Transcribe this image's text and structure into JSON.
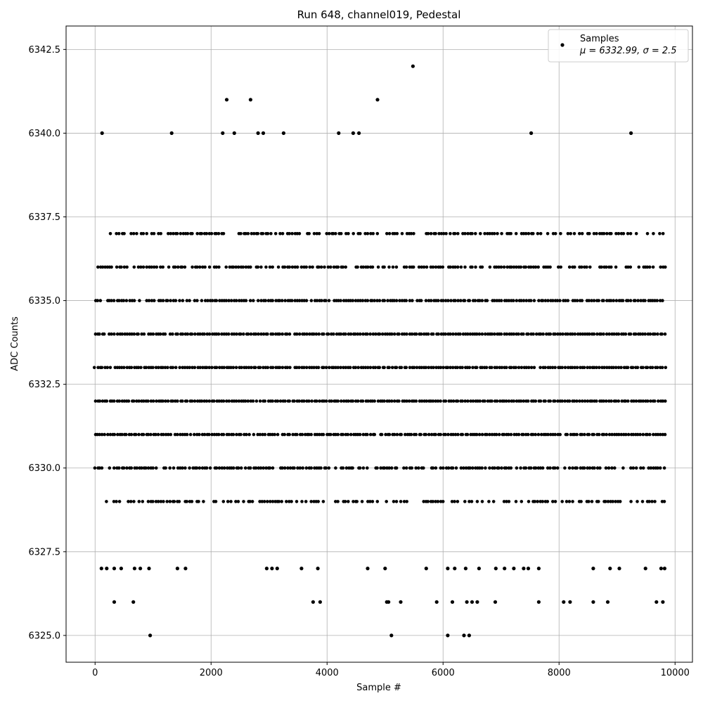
{
  "chart_data": {
    "type": "scatter",
    "title": "Run 648, channel019, Pedestal",
    "xlabel": "Sample #",
    "ylabel": "ADC Counts",
    "xlim": [
      -500,
      10300
    ],
    "ylim": [
      6324.2,
      6343.2
    ],
    "xticks": [
      0,
      2000,
      4000,
      6000,
      8000,
      10000
    ],
    "xtick_labels": [
      "0",
      "2000",
      "4000",
      "6000",
      "8000",
      "10000"
    ],
    "yticks": [
      6325.0,
      6327.5,
      6330.0,
      6332.5,
      6335.0,
      6337.5,
      6340.0,
      6342.5
    ],
    "ytick_labels": [
      "6325.0",
      "6327.5",
      "6330.0",
      "6332.5",
      "6335.0",
      "6337.5",
      "6340.0",
      "6342.5"
    ],
    "grid": true,
    "legend_position": "top-right",
    "series": [
      {
        "name": "Samples",
        "color": "#000000",
        "marker": "circle",
        "sample_count": 9830,
        "dense_levels": [
          {
            "y": 6337,
            "x_range": [
              0,
              9830
            ],
            "density": 0.65
          },
          {
            "y": 6336,
            "x_range": [
              0,
              9830
            ],
            "density": 0.75
          },
          {
            "y": 6335,
            "x_range": [
              0,
              9830
            ],
            "density": 0.9
          },
          {
            "y": 6334,
            "x_range": [
              0,
              9830
            ],
            "density": 0.97
          },
          {
            "y": 6333,
            "x_range": [
              0,
              9830
            ],
            "density": 0.99
          },
          {
            "y": 6332,
            "x_range": [
              0,
              9830
            ],
            "density": 0.99
          },
          {
            "y": 6331,
            "x_range": [
              0,
              9830
            ],
            "density": 0.95
          },
          {
            "y": 6330,
            "x_range": [
              0,
              9830
            ],
            "density": 0.8
          },
          {
            "y": 6329,
            "x_range": [
              200,
              9830
            ],
            "density": 0.6
          }
        ],
        "sparse_points": [
          {
            "x": 950,
            "y": 6325
          },
          {
            "x": 5110,
            "y": 6325
          },
          {
            "x": 6080,
            "y": 6325
          },
          {
            "x": 6360,
            "y": 6325
          },
          {
            "x": 6450,
            "y": 6325
          },
          {
            "x": 330,
            "y": 6326
          },
          {
            "x": 660,
            "y": 6326
          },
          {
            "x": 3760,
            "y": 6326
          },
          {
            "x": 3880,
            "y": 6326
          },
          {
            "x": 5030,
            "y": 6326
          },
          {
            "x": 5060,
            "y": 6326
          },
          {
            "x": 5270,
            "y": 6326
          },
          {
            "x": 5890,
            "y": 6326
          },
          {
            "x": 6160,
            "y": 6326
          },
          {
            "x": 6410,
            "y": 6326
          },
          {
            "x": 6500,
            "y": 6326
          },
          {
            "x": 6590,
            "y": 6326
          },
          {
            "x": 6900,
            "y": 6326
          },
          {
            "x": 7650,
            "y": 6326
          },
          {
            "x": 8080,
            "y": 6326
          },
          {
            "x": 8190,
            "y": 6326
          },
          {
            "x": 8590,
            "y": 6326
          },
          {
            "x": 8840,
            "y": 6326
          },
          {
            "x": 9680,
            "y": 6326
          },
          {
            "x": 9790,
            "y": 6326
          },
          {
            "x": 110,
            "y": 6327
          },
          {
            "x": 200,
            "y": 6327
          },
          {
            "x": 330,
            "y": 6327
          },
          {
            "x": 450,
            "y": 6327
          },
          {
            "x": 680,
            "y": 6327
          },
          {
            "x": 780,
            "y": 6327
          },
          {
            "x": 930,
            "y": 6327
          },
          {
            "x": 1420,
            "y": 6327
          },
          {
            "x": 1560,
            "y": 6327
          },
          {
            "x": 2960,
            "y": 6327
          },
          {
            "x": 3050,
            "y": 6327
          },
          {
            "x": 3140,
            "y": 6327
          },
          {
            "x": 3560,
            "y": 6327
          },
          {
            "x": 3840,
            "y": 6327
          },
          {
            "x": 4700,
            "y": 6327
          },
          {
            "x": 5000,
            "y": 6327
          },
          {
            "x": 5710,
            "y": 6327
          },
          {
            "x": 6080,
            "y": 6327
          },
          {
            "x": 6200,
            "y": 6327
          },
          {
            "x": 6390,
            "y": 6327
          },
          {
            "x": 6620,
            "y": 6327
          },
          {
            "x": 6910,
            "y": 6327
          },
          {
            "x": 7060,
            "y": 6327
          },
          {
            "x": 7220,
            "y": 6327
          },
          {
            "x": 7390,
            "y": 6327
          },
          {
            "x": 7470,
            "y": 6327
          },
          {
            "x": 7650,
            "y": 6327
          },
          {
            "x": 8590,
            "y": 6327
          },
          {
            "x": 8880,
            "y": 6327
          },
          {
            "x": 9040,
            "y": 6327
          },
          {
            "x": 9490,
            "y": 6327
          },
          {
            "x": 9760,
            "y": 6327
          },
          {
            "x": 9820,
            "y": 6327
          },
          {
            "x": 120,
            "y": 6340
          },
          {
            "x": 1320,
            "y": 6340
          },
          {
            "x": 2200,
            "y": 6340
          },
          {
            "x": 2400,
            "y": 6340
          },
          {
            "x": 2810,
            "y": 6340
          },
          {
            "x": 2900,
            "y": 6340
          },
          {
            "x": 3250,
            "y": 6340
          },
          {
            "x": 4200,
            "y": 6340
          },
          {
            "x": 4450,
            "y": 6340
          },
          {
            "x": 4550,
            "y": 6340
          },
          {
            "x": 7520,
            "y": 6340
          },
          {
            "x": 9240,
            "y": 6340
          },
          {
            "x": 2270,
            "y": 6341
          },
          {
            "x": 2680,
            "y": 6341
          },
          {
            "x": 4870,
            "y": 6341
          },
          {
            "x": 5480,
            "y": 6342
          }
        ]
      }
    ],
    "legend": {
      "marker_label": "Samples",
      "stats_label": "μ = 6332.99, σ = 2.5"
    }
  }
}
